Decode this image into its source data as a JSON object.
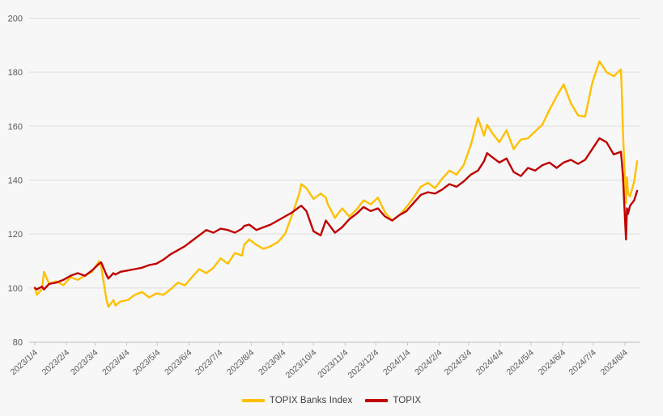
{
  "chart_data": {
    "type": "line",
    "title": "",
    "xlabel": "",
    "ylabel": "",
    "ylim": [
      80,
      200
    ],
    "yticks": [
      "200",
      "180",
      "160",
      "140",
      "120",
      "100",
      "80"
    ],
    "ytick_values": [
      200,
      180,
      160,
      140,
      120,
      100,
      80
    ],
    "grid": "horizontal",
    "legend_position": "bottom-center",
    "background_color": "#f7f7f7",
    "gridline_color": "#dddddd",
    "axis_color": "#c6c6c6",
    "tick_label_color": "#595959",
    "legend_text_color": "#3f3f3f",
    "xticks": [
      "2023/1/4",
      "2023/2/4",
      "2023/3/4",
      "2023/4/4",
      "2023/5/4",
      "2023/6/4",
      "2023/7/4",
      "2023/8/4",
      "2023/9/4",
      "2023/10/4",
      "2023/11/4",
      "2023/12/4",
      "2024/1/4",
      "2024/2/4",
      "2024/3/4",
      "2024/4/4",
      "2024/5/4",
      "2024/6/4",
      "2024/7/4",
      "2024/8/4"
    ],
    "x": [
      "2023/1/4",
      "2023/1/6",
      "2023/1/11",
      "2023/1/13",
      "2023/1/18",
      "2023/1/25",
      "2023/2/1",
      "2023/2/8",
      "2023/2/15",
      "2023/2/22",
      "2023/3/1",
      "2023/3/8",
      "2023/3/10",
      "2023/3/15",
      "2023/3/17",
      "2023/3/22",
      "2023/3/24",
      "2023/3/29",
      "2023/4/5",
      "2023/4/12",
      "2023/4/19",
      "2023/4/26",
      "2023/5/3",
      "2023/5/10",
      "2023/5/17",
      "2023/5/24",
      "2023/5/31",
      "2023/6/7",
      "2023/6/14",
      "2023/6/21",
      "2023/6/28",
      "2023/7/5",
      "2023/7/12",
      "2023/7/19",
      "2023/7/26",
      "2023/7/28",
      "2023/8/2",
      "2023/8/9",
      "2023/8/16",
      "2023/8/23",
      "2023/8/30",
      "2023/9/6",
      "2023/9/13",
      "2023/9/20",
      "2023/9/22",
      "2023/9/27",
      "2023/10/4",
      "2023/10/11",
      "2023/10/16",
      "2023/10/18",
      "2023/10/25",
      "2023/11/1",
      "2023/11/8",
      "2023/11/15",
      "2023/11/22",
      "2023/11/29",
      "2023/12/6",
      "2023/12/13",
      "2023/12/20",
      "2023/12/27",
      "2024/1/3",
      "2024/1/10",
      "2024/1/17",
      "2024/1/24",
      "2024/1/31",
      "2024/2/7",
      "2024/2/14",
      "2024/2/21",
      "2024/2/28",
      "2024/3/6",
      "2024/3/13",
      "2024/3/19",
      "2024/3/22",
      "2024/3/27",
      "2024/4/3",
      "2024/4/10",
      "2024/4/17",
      "2024/4/24",
      "2024/5/1",
      "2024/5/8",
      "2024/5/15",
      "2024/5/22",
      "2024/5/29",
      "2024/6/5",
      "2024/6/12",
      "2024/6/19",
      "2024/6/26",
      "2024/7/3",
      "2024/7/10",
      "2024/7/17",
      "2024/7/24",
      "2024/7/31",
      "2024/8/1",
      "2024/8/2",
      "2024/8/5",
      "2024/8/6",
      "2024/8/7",
      "2024/8/9",
      "2024/8/13",
      "2024/8/16"
    ],
    "series": [
      {
        "name": "TOPIX Banks Index",
        "color": "#FFC000",
        "values": [
          100,
          97.5,
          99.5,
          106,
          101.5,
          102.5,
          101,
          104,
          103,
          104.5,
          106,
          110,
          108,
          96,
          93,
          95.5,
          93.5,
          95,
          95.5,
          97.5,
          98.5,
          96.5,
          98,
          97.5,
          99.5,
          102,
          101,
          104,
          107,
          105.5,
          107.5,
          111,
          109,
          113,
          112,
          116,
          118,
          116,
          114.5,
          115.5,
          117,
          120,
          127,
          135,
          138.5,
          137,
          133,
          135,
          133.5,
          131,
          126,
          129.5,
          126.5,
          129,
          132.5,
          131,
          133.5,
          128,
          125,
          127,
          130,
          133.5,
          137.5,
          139,
          137,
          140.5,
          143.5,
          142,
          145.5,
          153,
          163,
          156.5,
          160.5,
          157.5,
          154,
          158.5,
          151.5,
          155,
          155.5,
          158,
          160.5,
          166,
          171,
          175.5,
          168.5,
          164,
          163.5,
          176,
          184,
          180,
          178.5,
          181,
          172,
          158,
          131.5,
          141,
          135,
          134,
          139.5,
          147
        ]
      },
      {
        "name": "TOPIX",
        "color": "#C00000",
        "values": [
          100,
          99.5,
          100.5,
          99.5,
          101.5,
          102,
          103,
          104.5,
          105.5,
          104.5,
          106.5,
          109,
          109.5,
          105,
          103.5,
          105.5,
          105,
          106,
          106.5,
          107,
          107.5,
          108.5,
          109,
          110.5,
          112.5,
          114,
          115.5,
          117.5,
          119.5,
          121.5,
          120.5,
          122,
          121.5,
          120.5,
          122,
          123,
          123.5,
          121.5,
          122.5,
          123.5,
          125,
          126.5,
          128,
          130,
          130.5,
          128.5,
          121,
          119.5,
          125,
          124,
          120.5,
          122.5,
          125.5,
          127.5,
          130,
          128.5,
          129.5,
          126.5,
          125,
          127,
          128.5,
          131.5,
          134.5,
          135.5,
          135,
          136.5,
          138.5,
          137.5,
          139.5,
          142,
          143.5,
          147,
          150,
          148.5,
          146.5,
          148,
          143,
          141.5,
          144.5,
          143.5,
          145.5,
          146.5,
          144.5,
          146.5,
          147.5,
          146,
          147.5,
          151.5,
          155.5,
          154,
          149.5,
          150.5,
          146.5,
          141.5,
          118,
          129.5,
          127.5,
          130.5,
          132.5,
          136
        ]
      }
    ]
  }
}
